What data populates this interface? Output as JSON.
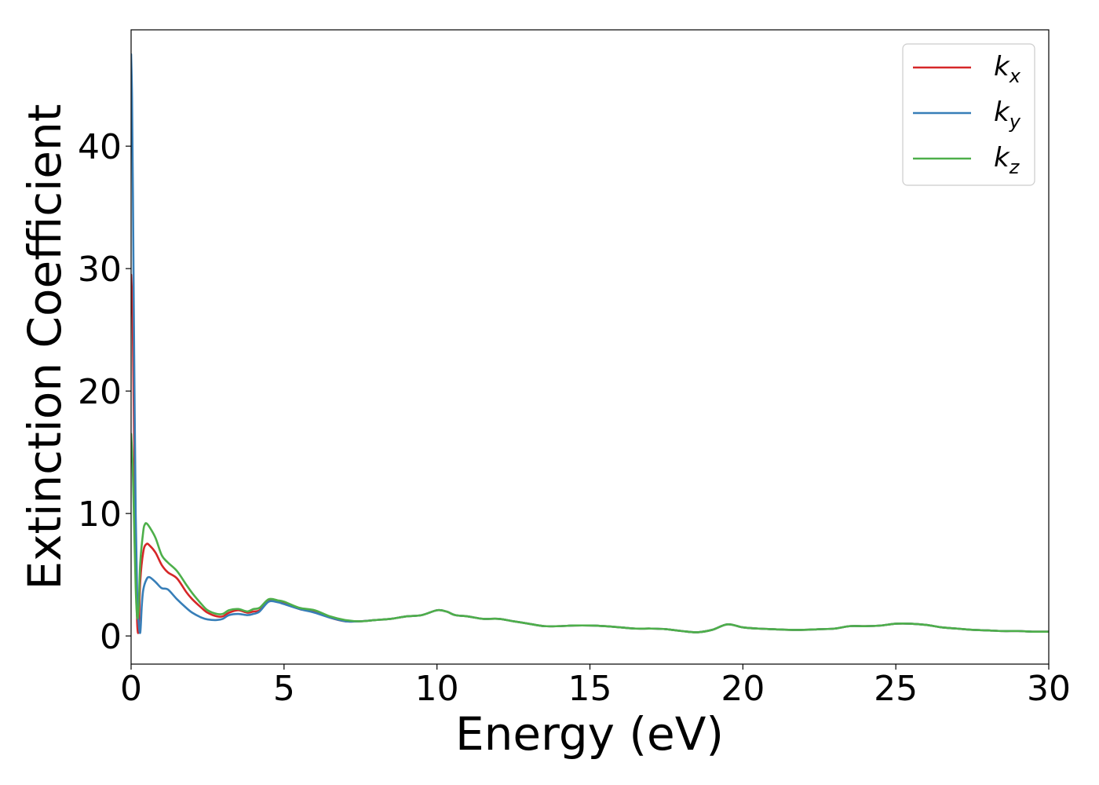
{
  "chart_data": {
    "type": "line",
    "xlabel": "Energy (eV)",
    "ylabel": "Extinction Coefficient",
    "xlim": [
      0,
      30
    ],
    "ylim": [
      -2.3,
      49.5
    ],
    "xticks": [
      "0",
      "5",
      "10",
      "15",
      "20",
      "25",
      "30"
    ],
    "yticks": [
      "0",
      "10",
      "20",
      "30",
      "40"
    ],
    "xtick_values": [
      0,
      5,
      10,
      15,
      20,
      25,
      30
    ],
    "ytick_values": [
      0,
      10,
      20,
      30,
      40
    ],
    "grid": false,
    "legend": "top-right",
    "series": [
      {
        "name": "k",
        "subscript": "x",
        "color": "#d62728",
        "x": [
          0.0,
          0.05,
          0.1,
          0.15,
          0.2,
          0.25,
          0.3,
          0.4,
          0.5,
          0.6,
          0.8,
          1.0,
          1.2,
          1.5,
          1.8,
          2.0,
          2.3,
          2.5,
          2.8,
          3.0,
          3.2,
          3.5,
          3.8,
          4.0,
          4.2,
          4.5,
          4.8,
          5.0,
          5.5,
          6.0,
          6.5,
          7.0,
          7.5,
          8.0,
          8.5,
          9.0,
          9.5,
          10.0,
          10.3,
          10.6,
          11.0,
          11.5,
          12.0,
          12.5,
          13.0,
          13.5,
          14.0,
          14.5,
          15.0,
          15.5,
          16.0,
          16.5,
          17.0,
          17.5,
          18.0,
          18.5,
          19.0,
          19.5,
          20.0,
          20.5,
          21.0,
          21.5,
          22.0,
          22.5,
          23.0,
          23.5,
          24.0,
          24.5,
          25.0,
          25.5,
          26.0,
          26.5,
          27.0,
          27.5,
          28.0,
          28.5,
          29.0,
          29.5,
          30.0
        ],
        "y": [
          29.5,
          26.0,
          16.0,
          7.0,
          1.0,
          0.7,
          4.5,
          6.9,
          7.5,
          7.4,
          6.8,
          5.8,
          5.2,
          4.7,
          3.6,
          3.0,
          2.3,
          1.9,
          1.6,
          1.6,
          1.9,
          2.1,
          1.9,
          2.0,
          2.1,
          2.9,
          2.8,
          2.7,
          2.2,
          2.0,
          1.5,
          1.2,
          1.2,
          1.3,
          1.4,
          1.6,
          1.7,
          2.1,
          2.0,
          1.7,
          1.6,
          1.4,
          1.4,
          1.2,
          1.0,
          0.8,
          0.8,
          0.85,
          0.85,
          0.8,
          0.7,
          0.6,
          0.6,
          0.55,
          0.4,
          0.3,
          0.5,
          0.95,
          0.7,
          0.6,
          0.55,
          0.5,
          0.5,
          0.55,
          0.6,
          0.8,
          0.8,
          0.85,
          1.0,
          1.0,
          0.9,
          0.7,
          0.6,
          0.5,
          0.45,
          0.4,
          0.4,
          0.35,
          0.35
        ]
      },
      {
        "name": "k",
        "subscript": "y",
        "color": "#377eb8",
        "x": [
          0.0,
          0.03,
          0.06,
          0.1,
          0.15,
          0.2,
          0.25,
          0.3,
          0.35,
          0.4,
          0.5,
          0.6,
          0.8,
          1.0,
          1.2,
          1.5,
          1.8,
          2.0,
          2.3,
          2.5,
          2.8,
          3.0,
          3.2,
          3.5,
          3.8,
          4.0,
          4.2,
          4.5,
          4.8,
          5.0,
          5.5,
          6.0,
          6.5,
          7.0,
          7.5,
          8.0,
          8.5,
          9.0,
          9.5,
          10.0,
          10.3,
          10.6,
          11.0,
          11.5,
          12.0,
          12.5,
          13.0,
          13.5,
          14.0,
          14.5,
          15.0,
          15.5,
          16.0,
          16.5,
          17.0,
          17.5,
          18.0,
          18.5,
          19.0,
          19.5,
          20.0,
          20.5,
          21.0,
          21.5,
          22.0,
          22.5,
          23.0,
          23.5,
          24.0,
          24.5,
          25.0,
          25.5,
          26.0,
          26.5,
          27.0,
          27.5,
          28.0,
          28.5,
          29.0,
          29.5,
          30.0
        ],
        "y": [
          47.5,
          44.0,
          36.0,
          23.0,
          10.0,
          3.0,
          1.0,
          0.3,
          2.5,
          3.8,
          4.6,
          4.8,
          4.4,
          3.9,
          3.8,
          3.0,
          2.3,
          1.9,
          1.5,
          1.35,
          1.3,
          1.4,
          1.7,
          1.8,
          1.7,
          1.8,
          2.0,
          2.8,
          2.75,
          2.6,
          2.2,
          1.9,
          1.5,
          1.2,
          1.2,
          1.3,
          1.4,
          1.6,
          1.7,
          2.1,
          2.0,
          1.7,
          1.6,
          1.4,
          1.4,
          1.2,
          1.0,
          0.8,
          0.8,
          0.85,
          0.85,
          0.8,
          0.7,
          0.6,
          0.6,
          0.55,
          0.4,
          0.3,
          0.5,
          0.95,
          0.7,
          0.6,
          0.55,
          0.5,
          0.5,
          0.55,
          0.6,
          0.8,
          0.8,
          0.85,
          1.0,
          1.0,
          0.9,
          0.7,
          0.6,
          0.5,
          0.45,
          0.4,
          0.4,
          0.35,
          0.35
        ]
      },
      {
        "name": "k",
        "subscript": "z",
        "color": "#4daf4a",
        "x": [
          0.0,
          0.05,
          0.1,
          0.15,
          0.2,
          0.25,
          0.3,
          0.4,
          0.45,
          0.5,
          0.6,
          0.8,
          1.0,
          1.2,
          1.5,
          1.8,
          2.0,
          2.3,
          2.5,
          2.8,
          3.0,
          3.2,
          3.5,
          3.8,
          4.0,
          4.2,
          4.5,
          4.8,
          5.0,
          5.5,
          6.0,
          6.5,
          7.0,
          7.5,
          8.0,
          8.5,
          9.0,
          9.5,
          10.0,
          10.3,
          10.6,
          11.0,
          11.5,
          12.0,
          12.5,
          13.0,
          13.5,
          14.0,
          14.5,
          15.0,
          15.5,
          16.0,
          16.5,
          17.0,
          17.5,
          18.0,
          18.5,
          19.0,
          19.5,
          20.0,
          20.5,
          21.0,
          21.5,
          22.0,
          22.5,
          23.0,
          23.5,
          24.0,
          24.5,
          25.0,
          25.5,
          26.0,
          26.5,
          27.0,
          27.5,
          28.0,
          28.5,
          29.0,
          29.5,
          30.0
        ],
        "y": [
          16.5,
          14.0,
          9.0,
          4.0,
          1.5,
          2.5,
          6.0,
          8.6,
          9.1,
          9.2,
          8.9,
          8.0,
          6.6,
          6.0,
          5.3,
          4.2,
          3.5,
          2.6,
          2.1,
          1.8,
          1.8,
          2.1,
          2.2,
          2.0,
          2.2,
          2.3,
          3.0,
          2.9,
          2.8,
          2.3,
          2.1,
          1.6,
          1.3,
          1.2,
          1.3,
          1.4,
          1.6,
          1.7,
          2.1,
          2.0,
          1.7,
          1.6,
          1.4,
          1.4,
          1.2,
          1.0,
          0.8,
          0.8,
          0.85,
          0.85,
          0.8,
          0.7,
          0.6,
          0.6,
          0.55,
          0.4,
          0.3,
          0.5,
          0.95,
          0.7,
          0.6,
          0.55,
          0.5,
          0.5,
          0.55,
          0.6,
          0.8,
          0.8,
          0.85,
          1.0,
          1.0,
          0.9,
          0.7,
          0.6,
          0.5,
          0.45,
          0.4,
          0.4,
          0.35,
          0.35
        ]
      }
    ]
  }
}
